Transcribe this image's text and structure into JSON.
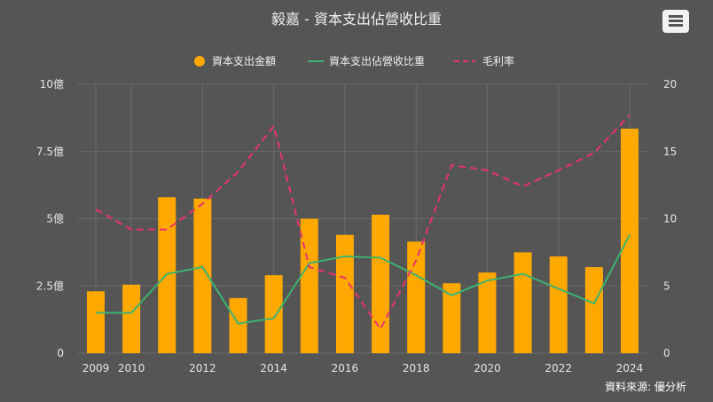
{
  "header": {
    "title": "毅嘉 - 資本支出佔營收比重",
    "menu_icon": "hamburger-menu-icon"
  },
  "footer": {
    "source": "資料來源: 優分析"
  },
  "colors": {
    "background": "#555555",
    "bar": "#FFA800",
    "capex_ratio_line": "#3CB371",
    "gross_margin_line": "#E8336D",
    "grid": "#6b6b6b"
  },
  "chart_data": {
    "type": "bar",
    "title": "毅嘉 - 資本支出佔營收比重",
    "x": [
      2009,
      2010,
      2011,
      2012,
      2013,
      2014,
      2015,
      2016,
      2017,
      2018,
      2019,
      2020,
      2021,
      2022,
      2023,
      2024
    ],
    "x_tick_labels": [
      "2009",
      "2010",
      "2012",
      "2014",
      "2016",
      "2018",
      "2020",
      "2022",
      "2024"
    ],
    "left_axis": {
      "ticks": [
        "0",
        "2.5億",
        "5億",
        "7.5億",
        "10億"
      ],
      "range": [
        0,
        10
      ]
    },
    "right_axis": {
      "ticks": [
        "0",
        "5",
        "10",
        "15",
        "20"
      ],
      "range": [
        0,
        20
      ]
    },
    "grid": true,
    "legend_position": "top",
    "series": [
      {
        "name": "資本支出金額",
        "type": "bar",
        "axis": "left",
        "values": [
          2.3,
          2.55,
          5.8,
          5.75,
          2.05,
          2.9,
          5.0,
          4.4,
          5.15,
          4.15,
          2.6,
          3.0,
          3.75,
          3.6,
          3.2,
          8.35
        ]
      },
      {
        "name": "資本支出佔營收比重",
        "type": "line",
        "axis": "right",
        "values": [
          3.0,
          3.0,
          5.9,
          6.4,
          2.2,
          2.6,
          6.7,
          7.2,
          7.1,
          5.8,
          4.3,
          5.4,
          5.9,
          4.8,
          3.7,
          8.8
        ]
      },
      {
        "name": "毛利率",
        "type": "line",
        "dash": true,
        "axis": "right",
        "values": [
          10.7,
          9.2,
          9.2,
          11.1,
          13.5,
          16.9,
          6.4,
          5.6,
          1.8,
          6.9,
          14.0,
          13.6,
          12.4,
          13.6,
          14.9,
          17.7
        ]
      }
    ]
  }
}
